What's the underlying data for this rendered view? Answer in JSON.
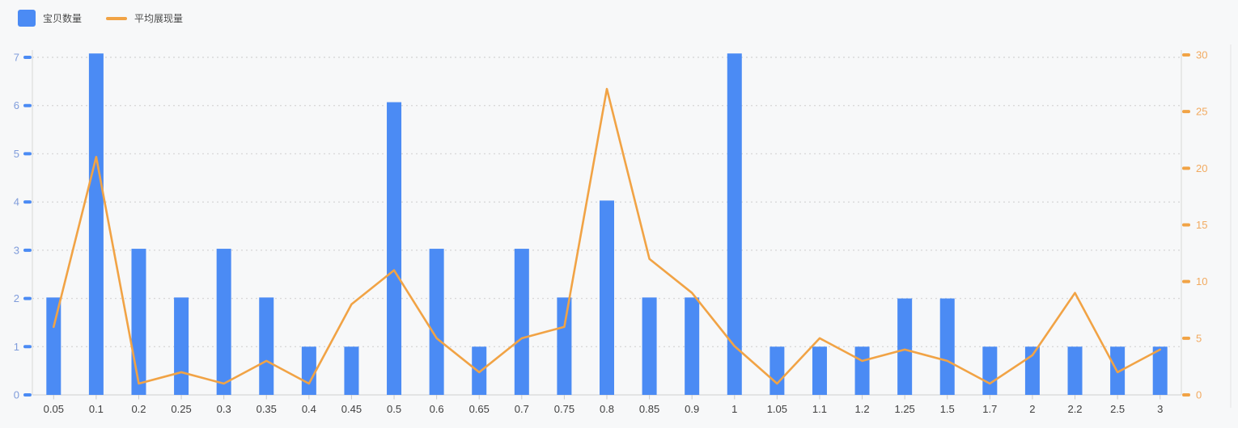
{
  "legend": {
    "bar_label": "宝贝数量",
    "line_label": "平均展现量"
  },
  "chart_data": {
    "type": "bar+line",
    "categories": [
      "0.05",
      "0.1",
      "0.2",
      "0.25",
      "0.3",
      "0.35",
      "0.4",
      "0.45",
      "0.5",
      "0.6",
      "0.65",
      "0.7",
      "0.75",
      "0.8",
      "0.85",
      "0.9",
      "1",
      "1.05",
      "1.1",
      "1.2",
      "1.25",
      "1.5",
      "1.7",
      "2",
      "2.2",
      "2.5",
      "3"
    ],
    "series": [
      {
        "name": "宝贝数量",
        "type": "bar",
        "axis": "left",
        "color": "#4b8bf4",
        "values": [
          2.02,
          7.08,
          3.03,
          2.02,
          3.03,
          2.02,
          1,
          1,
          6.07,
          3.03,
          1,
          3.03,
          2.02,
          4.03,
          2.02,
          2.02,
          7.08,
          1,
          1,
          1,
          2,
          2,
          1,
          1,
          1,
          1,
          1
        ]
      },
      {
        "name": "平均展现量",
        "type": "line",
        "axis": "right",
        "color": "#f1a345",
        "values": [
          6,
          21,
          1,
          2,
          1,
          3,
          1,
          8,
          11,
          5,
          2,
          5,
          6,
          27,
          12,
          9,
          4.3,
          1,
          5,
          3,
          4,
          3,
          1,
          3.5,
          9,
          2,
          4
        ]
      }
    ],
    "left_axis": {
      "min": 0,
      "max": 7,
      "ticks": [
        0,
        1,
        2,
        3,
        4,
        5,
        6,
        7
      ],
      "label_color": "#7f9cdb",
      "tick_color": "#4b8bf4"
    },
    "right_axis": {
      "min": 0,
      "max": 30,
      "ticks": [
        0,
        5,
        10,
        15,
        20,
        25,
        30
      ],
      "label_color": "#f2aa60",
      "tick_color": "#f1a345"
    },
    "x_axis": {
      "label_color": "#3f3f3f",
      "tick_color": "#c9c9c9",
      "line_color": "#cfcfcf"
    },
    "grid": {
      "show": true,
      "style": "dotted",
      "color": "#d9d9d9"
    },
    "legend_position": "top-left",
    "background": "#f7f8f9",
    "title": "",
    "xlabel": "",
    "ylabel_left": "宝贝数量",
    "ylabel_right": "平均展现量"
  }
}
